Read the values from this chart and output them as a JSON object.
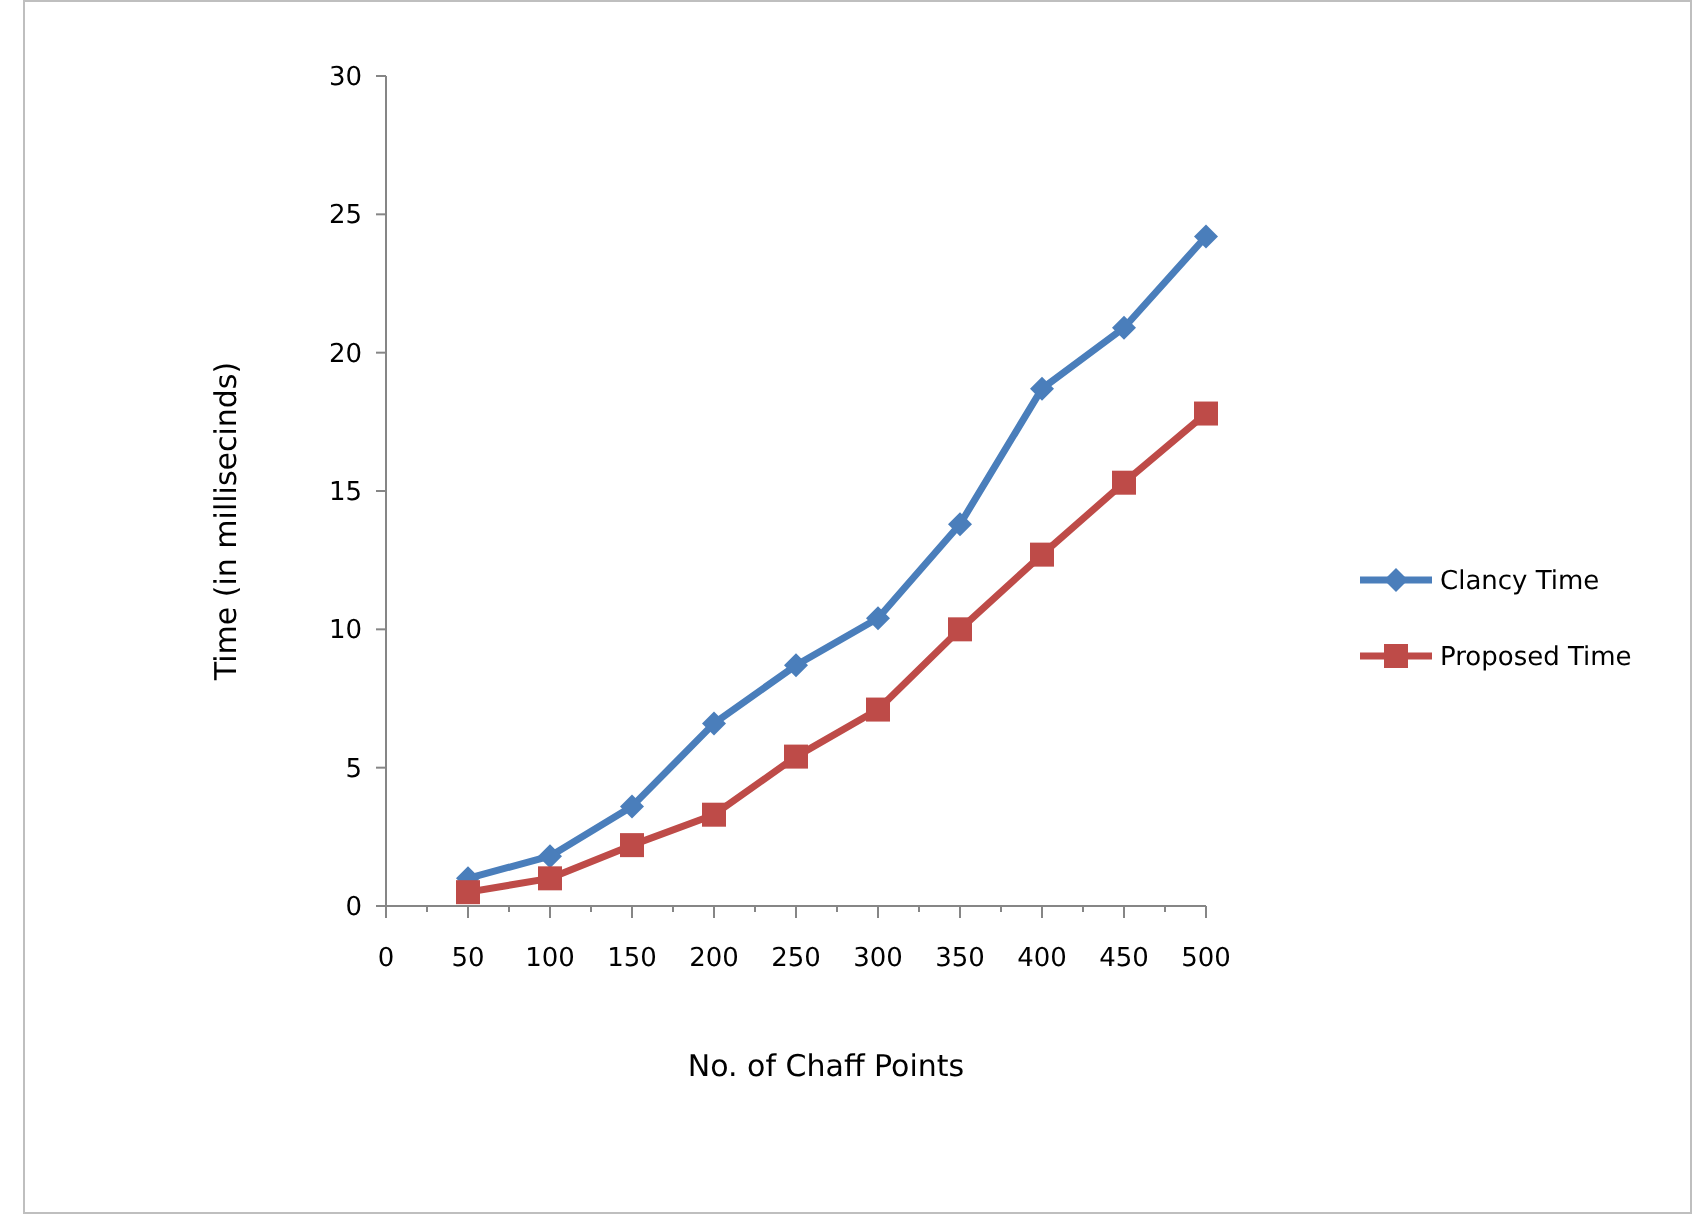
{
  "chart_data": {
    "type": "line",
    "xlabel": "No. of Chaff Points",
    "ylabel": "Time  (in millisecinds)",
    "x": [
      50,
      100,
      150,
      200,
      250,
      300,
      350,
      400,
      450,
      500
    ],
    "series": [
      {
        "name": "Clancy Time",
        "color": "#4a7ebb",
        "marker": "diamond",
        "values": [
          1.0,
          1.8,
          3.6,
          6.6,
          8.7,
          10.4,
          13.8,
          18.7,
          20.9,
          24.2
        ]
      },
      {
        "name": "Proposed Time",
        "color": "#be4b48",
        "marker": "square",
        "values": [
          0.5,
          1.0,
          2.2,
          3.3,
          5.4,
          7.1,
          10.0,
          12.7,
          15.3,
          17.8
        ]
      }
    ],
    "xlim": [
      0,
      500
    ],
    "xticks": [
      0,
      {
        "value": 25,
        "label": null
      },
      50,
      {
        "value": 75,
        "label": null
      },
      100,
      {
        "value": 125,
        "label": null
      },
      150,
      {
        "value": 175,
        "label": null
      },
      200,
      {
        "value": 225,
        "label": null
      },
      250,
      {
        "value": 275,
        "label": null
      },
      300,
      {
        "value": 325,
        "label": null
      },
      350,
      {
        "value": 375,
        "label": null
      },
      400,
      {
        "value": 425,
        "label": null
      },
      450,
      {
        "value": 475,
        "label": null
      },
      500
    ],
    "ylim": [
      0,
      30
    ],
    "yticks": [
      0,
      5,
      10,
      15,
      20,
      25,
      30
    ],
    "legend": "right",
    "grid": false
  }
}
